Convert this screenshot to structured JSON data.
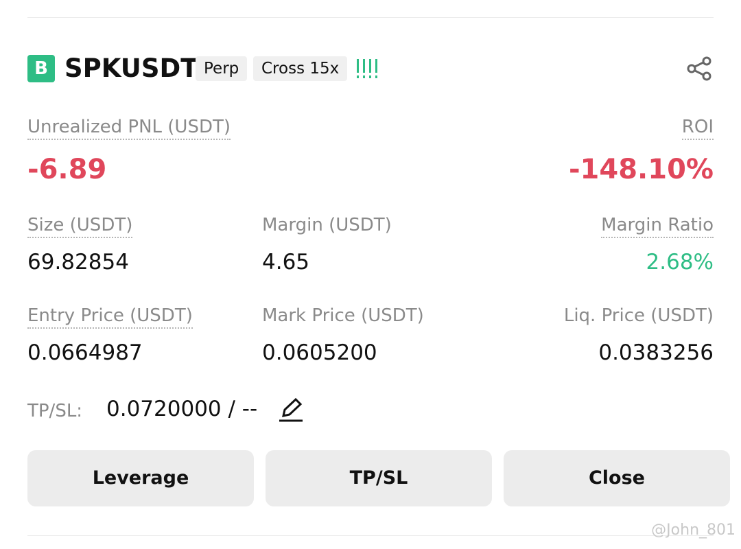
{
  "header": {
    "badge": "B",
    "symbol": "SPKUSDT",
    "tags": [
      "Perp",
      "Cross 15x"
    ]
  },
  "pnl": {
    "label": "Unrealized PNL (USDT)",
    "value": "-6.89"
  },
  "roi": {
    "label": "ROI",
    "value": "-148.10%"
  },
  "stats": [
    {
      "label": "Size (USDT)",
      "value": "69.82854"
    },
    {
      "label": "Margin (USDT)",
      "value": "4.65"
    },
    {
      "label": "Margin Ratio",
      "value": "2.68%"
    },
    {
      "label": "Entry Price (USDT)",
      "value": "0.0664987"
    },
    {
      "label": "Mark Price (USDT)",
      "value": "0.0605200"
    },
    {
      "label": "Liq. Price (USDT)",
      "value": "0.0383256"
    }
  ],
  "tpsl": {
    "label": "TP/SL:",
    "value": "0.0720000 / --"
  },
  "buttons": [
    "Leverage",
    "TP/SL",
    "Close"
  ],
  "watermark": "@John_801"
}
